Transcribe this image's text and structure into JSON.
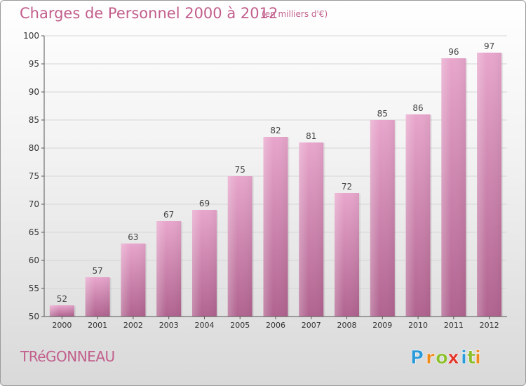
{
  "title": "Charges de Personnel 2000 à 2012",
  "subtitle": "(en milliers d'€)",
  "town": "TRéGONNEAU",
  "logo": {
    "text": "Proxiti",
    "letters": [
      "P",
      "r",
      "o",
      "x",
      "i",
      "t",
      "i"
    ],
    "colors": [
      "#2a9ad8",
      "#f08a1c",
      "#8cbf2c",
      "#e3352a",
      "#2a9ad8",
      "#8cbf2c",
      "#f08a1c"
    ]
  },
  "colors": {
    "bar_light": "#e8a6cc",
    "bar_dark": "#b0638f",
    "text": "#c25e8c"
  },
  "chart_data": {
    "type": "bar",
    "title": "Charges de Personnel 2000 à 2012",
    "xlabel": "",
    "ylabel": "",
    "categories": [
      "2000",
      "2001",
      "2002",
      "2003",
      "2004",
      "2005",
      "2006",
      "2007",
      "2008",
      "2009",
      "2010",
      "2011",
      "2012"
    ],
    "values": [
      52,
      57,
      63,
      67,
      69,
      75,
      82,
      81,
      72,
      85,
      86,
      96,
      97
    ],
    "ylim": [
      50,
      100
    ],
    "yticks": [
      50,
      55,
      60,
      65,
      70,
      75,
      80,
      85,
      90,
      95,
      100
    ],
    "grid": true,
    "legend": "none"
  }
}
